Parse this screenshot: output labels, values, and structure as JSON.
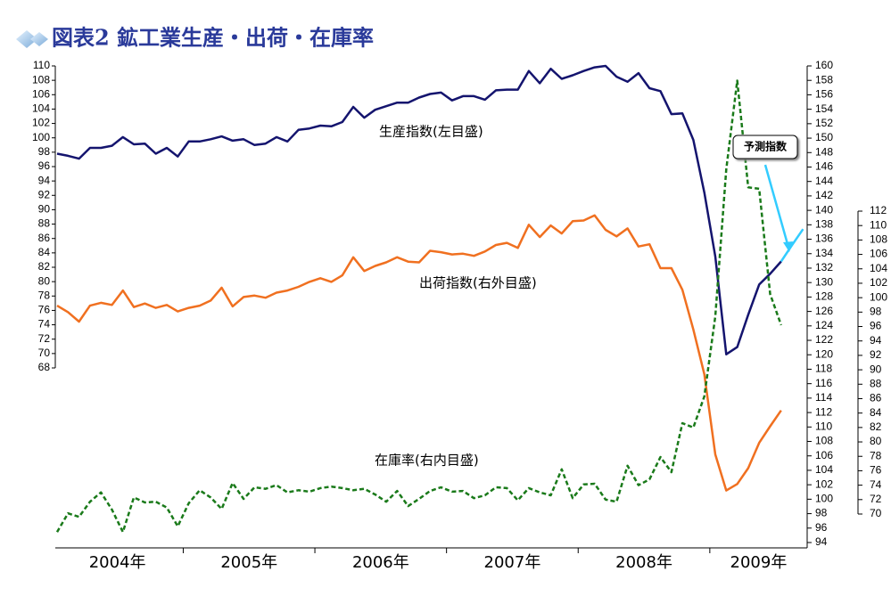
{
  "chart_data": {
    "type": "line",
    "title": "図表2 鉱工業生産・出荷・在庫率",
    "categories": [
      "2004年",
      null,
      null,
      null,
      null,
      null,
      null,
      null,
      null,
      null,
      null,
      null,
      "2005年",
      null,
      null,
      null,
      null,
      null,
      null,
      null,
      null,
      null,
      null,
      null,
      "2006年",
      null,
      null,
      null,
      null,
      null,
      null,
      null,
      null,
      null,
      null,
      null,
      "2007年",
      null,
      null,
      null,
      null,
      null,
      null,
      null,
      null,
      null,
      null,
      null,
      "2008年",
      null,
      null,
      null,
      null,
      null,
      null,
      null,
      null,
      null,
      null,
      null,
      "2009年",
      null,
      null,
      null,
      null,
      null,
      null,
      null,
      null
    ],
    "ylim": [
      68,
      110
    ],
    "yticks": [
      68,
      70,
      72,
      74,
      76,
      78,
      80,
      82,
      84,
      86,
      88,
      90,
      92,
      94,
      96,
      98,
      100,
      102,
      104,
      106,
      108,
      110
    ],
    "y2lim": [
      94,
      160
    ],
    "y2ticks": [
      94,
      96,
      98,
      100,
      102,
      104,
      106,
      108,
      110,
      112,
      114,
      116,
      118,
      120,
      122,
      124,
      126,
      128,
      130,
      132,
      134,
      136,
      138,
      140,
      142,
      144,
      146,
      148,
      150,
      152,
      154,
      156,
      158,
      160
    ],
    "y3lim": [
      70,
      112
    ],
    "y3ticks": [
      70,
      72,
      74,
      76,
      78,
      80,
      82,
      84,
      86,
      88,
      90,
      92,
      94,
      96,
      98,
      100,
      102,
      104,
      106,
      108,
      110,
      112
    ],
    "series": [
      {
        "name": "生産指数(左目盛)",
        "color": "#14146e",
        "axis": "y",
        "dashed": false,
        "values": [
          97.8,
          97.5,
          97.1,
          98.6,
          98.6,
          98.9,
          100.1,
          99.1,
          99.2,
          97.8,
          98.6,
          97.4,
          99.5,
          99.5,
          99.8,
          100.2,
          99.6,
          99.8,
          99.0,
          99.2,
          100.1,
          99.5,
          101.1,
          101.3,
          101.7,
          101.6,
          102.2,
          104.3,
          102.8,
          103.9,
          104.4,
          104.9,
          104.9,
          105.6,
          106.1,
          106.3,
          105.2,
          105.8,
          105.8,
          105.3,
          106.6,
          106.7,
          106.7,
          109.3,
          107.6,
          109.6,
          108.2,
          108.7,
          109.3,
          109.8,
          110.0,
          108.5,
          107.8,
          109.0,
          106.9,
          106.5,
          103.3,
          103.4,
          99.7,
          92.4,
          83.5,
          69.9,
          70.9,
          75.4,
          79.6,
          81.1,
          82.8,
          null,
          null
        ]
      },
      {
        "name": "出荷指数(右外目盛)",
        "color": "#f07020",
        "axis": "y2",
        "dashed": false,
        "values": [
          126.8,
          125.9,
          124.6,
          126.8,
          127.2,
          126.9,
          128.9,
          126.6,
          127.1,
          126.5,
          126.9,
          126.0,
          126.5,
          126.8,
          127.5,
          129.3,
          126.7,
          128.0,
          128.2,
          127.9,
          128.6,
          128.9,
          129.4,
          130.1,
          130.6,
          130.1,
          131.0,
          133.5,
          131.6,
          132.3,
          132.8,
          133.5,
          132.9,
          132.8,
          134.4,
          134.2,
          133.9,
          134.0,
          133.7,
          134.3,
          135.2,
          135.5,
          134.8,
          138.0,
          136.3,
          137.9,
          136.8,
          138.5,
          138.6,
          139.3,
          137.3,
          136.4,
          137.5,
          135.0,
          135.3,
          132.0,
          132.0,
          129.0,
          123.5,
          117.3,
          106.2,
          101.2,
          102.1,
          104.3,
          107.8,
          110.1,
          112.3,
          null,
          null
        ]
      },
      {
        "name": "在庫率(右内目盛)",
        "color": "#1a7a1a",
        "axis": "y3",
        "dashed": true,
        "values": [
          67.5,
          70.1,
          69.6,
          71.7,
          73.0,
          70.6,
          67.5,
          72.3,
          71.6,
          71.7,
          70.9,
          68.3,
          71.5,
          73.3,
          72.3,
          70.7,
          74.3,
          72.1,
          73.7,
          73.5,
          74.0,
          73.0,
          73.3,
          73.1,
          73.6,
          73.8,
          73.6,
          73.3,
          73.5,
          72.7,
          71.7,
          73.2,
          71.1,
          72.1,
          73.2,
          73.7,
          73.1,
          73.2,
          72.2,
          72.6,
          73.7,
          73.6,
          71.9,
          73.6,
          73.0,
          72.6,
          76.2,
          72.2,
          74.1,
          74.2,
          72.0,
          71.7,
          76.7,
          74.0,
          74.8,
          77.9,
          75.8,
          82.6,
          82.0,
          86.3,
          97.4,
          117.8,
          130.1,
          115.3,
          115.1,
          100.5,
          96.2,
          null,
          null
        ]
      },
      {
        "name": "予測指数",
        "color": "#33ccff",
        "axis": "y",
        "dashed": false,
        "values": [
          null,
          null,
          null,
          null,
          null,
          null,
          null,
          null,
          null,
          null,
          null,
          null,
          null,
          null,
          null,
          null,
          null,
          null,
          null,
          null,
          null,
          null,
          null,
          null,
          null,
          null,
          null,
          null,
          null,
          null,
          null,
          null,
          null,
          null,
          null,
          null,
          null,
          null,
          null,
          null,
          null,
          null,
          null,
          null,
          null,
          null,
          null,
          null,
          null,
          null,
          null,
          null,
          null,
          null,
          null,
          null,
          null,
          null,
          null,
          null,
          null,
          null,
          null,
          null,
          null,
          null,
          82.8,
          85.1,
          87.3
        ]
      }
    ]
  }
}
